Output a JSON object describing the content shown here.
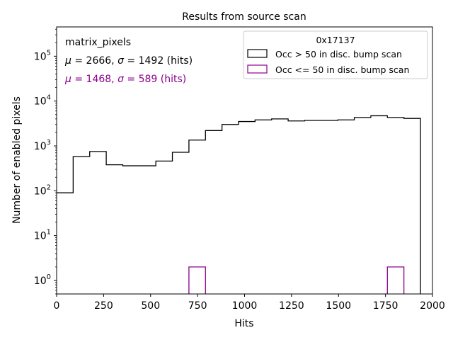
{
  "chart_data": {
    "type": "histogram",
    "title": "Results from source scan",
    "xlabel": "Hits",
    "ylabel": "Number of enabled pixels",
    "xlim": [
      0,
      2000
    ],
    "ylim": [
      0.5,
      450000
    ],
    "yscale": "log",
    "xticks": [
      0,
      250,
      500,
      750,
      1000,
      1250,
      1500,
      1750,
      2000
    ],
    "xtick_labels": [
      "0",
      "250",
      "500",
      "750",
      "1000",
      "1250",
      "1500",
      "1750",
      "2000"
    ],
    "yticks": [
      1,
      10,
      100,
      1000,
      10000,
      100000
    ],
    "ytick_labels": [
      {
        "base": "10",
        "exp": "0"
      },
      {
        "base": "10",
        "exp": "1"
      },
      {
        "base": "10",
        "exp": "2"
      },
      {
        "base": "10",
        "exp": "3"
      },
      {
        "base": "10",
        "exp": "4"
      },
      {
        "base": "10",
        "exp": "5"
      }
    ],
    "grid": false,
    "legend": {
      "title": "0x17137",
      "position": "top-right",
      "entries": [
        "Occ > 50 in disc. bump scan",
        "Occ <= 50 in disc. bump scan"
      ]
    },
    "annotations": {
      "label": "matrix_pixels",
      "stats": [
        {
          "mu": "μ",
          "mu_val": " = 2666, ",
          "sigma": "σ",
          "sigma_val": " = 1492 (hits)",
          "color": "#000000"
        },
        {
          "mu": "μ",
          "mu_val": " = 1468, ",
          "sigma": "σ",
          "sigma_val": " = 589 (hits)",
          "color": "#8b008b"
        }
      ]
    },
    "bin_edges": [
      0,
      88,
      176,
      264,
      352,
      440,
      528,
      616,
      704,
      792,
      880,
      968,
      1056,
      1144,
      1232,
      1320,
      1408,
      1496,
      1584,
      1672,
      1760,
      1848,
      1936
    ],
    "series": [
      {
        "name": "Occ > 50 in disc. bump scan",
        "color": "#000000",
        "counts": [
          90,
          580,
          750,
          380,
          360,
          360,
          460,
          720,
          1350,
          2200,
          3000,
          3500,
          3800,
          4000,
          3600,
          3700,
          3700,
          3800,
          4300,
          4700,
          4300,
          4100
        ]
      },
      {
        "name": "Occ <= 50 in disc. bump scan",
        "color": "#8b008b",
        "counts": [
          0,
          0,
          0,
          0,
          0,
          0,
          0,
          0,
          2,
          0,
          0,
          0,
          0,
          0,
          0,
          0,
          0,
          0,
          0,
          0,
          2,
          0
        ]
      }
    ]
  }
}
